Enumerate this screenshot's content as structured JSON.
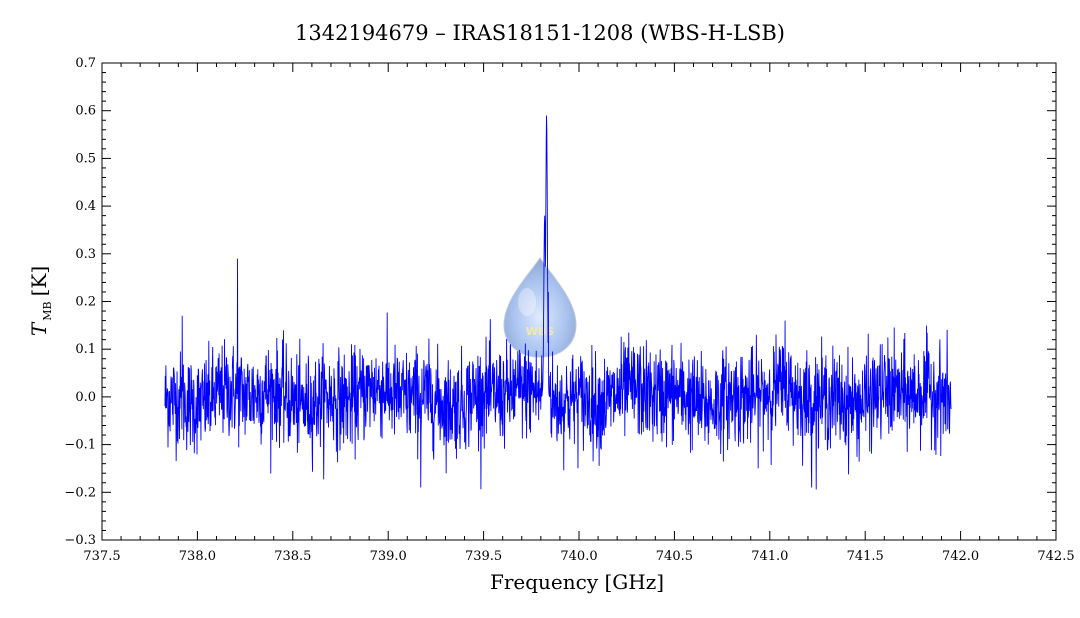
{
  "chart_data": {
    "type": "line",
    "title": "1342194679 – IRAS18151-1208 (WBS-H-LSB)",
    "xlabel": "Frequency [GHz]",
    "ylabel": {
      "symbol": "T",
      "subscript": "MB",
      "unit": "[K]"
    },
    "xlim": [
      737.5,
      742.5
    ],
    "ylim": [
      -0.3,
      0.7
    ],
    "x_ticks": [
      "737.5",
      "738.0",
      "738.5",
      "739.0",
      "739.5",
      "740.0",
      "740.5",
      "741.0",
      "741.5",
      "742.0",
      "742.5"
    ],
    "y_ticks": [
      "−0.3",
      "−0.2",
      "−0.1",
      "0.0",
      "0.1",
      "0.2",
      "0.3",
      "0.4",
      "0.5",
      "0.6",
      "0.7"
    ],
    "grid": false,
    "series": [
      {
        "color": "#0000ff",
        "x_range": [
          737.83,
          741.95
        ],
        "baseline": 0.0,
        "noise_rms": 0.05,
        "features": [
          {
            "x": 737.92,
            "y": 0.17
          },
          {
            "x": 738.21,
            "y": 0.29
          },
          {
            "x": 739.17,
            "y": -0.19
          },
          {
            "x": 739.79,
            "y": 0.06
          },
          {
            "x": 739.82,
            "y": 0.38
          },
          {
            "x": 739.83,
            "y": 0.59
          },
          {
            "x": 739.84,
            "y": 0.22
          },
          {
            "x": 741.08,
            "y": 0.16
          },
          {
            "x": 741.22,
            "y": -0.19
          }
        ]
      }
    ]
  },
  "watermark": {
    "text": "WBS",
    "color": "#7fa6e6"
  }
}
